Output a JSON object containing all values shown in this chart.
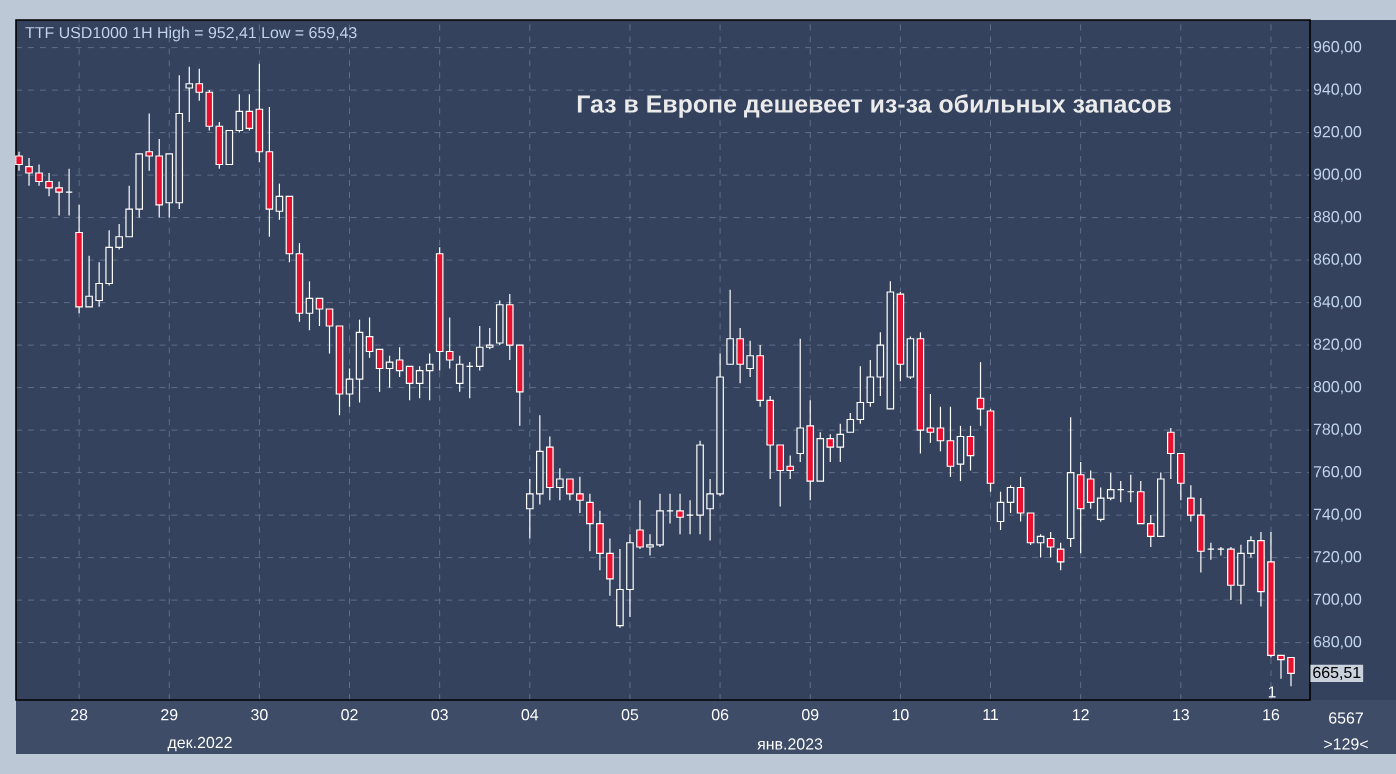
{
  "chart_data": {
    "type": "candlestick",
    "title": "TTF USD1000 1H High = 952,41 Low = 659,43",
    "subtitle": "Газ в Европе дешевеет из-за обильных запасов",
    "categories": [
      null,
      null,
      null,
      null,
      null,
      null,
      "28",
      null,
      null,
      null,
      null,
      null,
      null,
      null,
      null,
      "29",
      null,
      null,
      null,
      null,
      null,
      null,
      null,
      null,
      "30",
      null,
      null,
      null,
      null,
      null,
      null,
      null,
      null,
      "02",
      null,
      null,
      null,
      null,
      null,
      null,
      null,
      null,
      "03",
      null,
      null,
      null,
      null,
      null,
      null,
      null,
      null,
      "04",
      null,
      null,
      null,
      null,
      null,
      null,
      null,
      null,
      null,
      "05",
      null,
      null,
      null,
      null,
      null,
      null,
      null,
      null,
      "06",
      null,
      null,
      null,
      null,
      null,
      null,
      null,
      null,
      "09",
      null,
      null,
      null,
      null,
      null,
      null,
      null,
      null,
      "10",
      null,
      null,
      null,
      null,
      null,
      null,
      null,
      null,
      "11",
      null,
      null,
      null,
      null,
      null,
      null,
      null,
      null,
      "12",
      null,
      null,
      null,
      null,
      null,
      null,
      null,
      null,
      null,
      "13",
      null,
      null,
      null,
      null,
      null,
      null,
      null,
      null,
      "16",
      null,
      null
    ],
    "ohlc": [
      [
        909,
        911,
        902,
        905
      ],
      [
        904,
        908,
        895,
        901
      ],
      [
        901,
        905,
        895,
        897
      ],
      [
        897,
        901,
        890,
        894
      ],
      [
        894,
        897,
        881,
        892
      ],
      [
        892,
        903,
        881,
        892
      ],
      [
        873,
        886,
        835,
        838
      ],
      [
        838,
        862,
        838,
        843
      ],
      [
        841,
        859,
        838,
        849
      ],
      [
        849,
        874,
        848,
        866
      ],
      [
        866,
        877,
        865,
        871
      ],
      [
        871,
        895,
        871,
        884
      ],
      [
        884,
        910,
        880,
        910
      ],
      [
        911,
        929,
        902,
        909
      ],
      [
        909,
        917,
        880,
        886
      ],
      [
        887,
        910,
        880,
        910
      ],
      [
        887,
        947,
        884,
        929
      ],
      [
        941,
        951,
        925,
        943
      ],
      [
        943,
        950,
        935,
        939
      ],
      [
        939,
        940,
        921,
        923
      ],
      [
        923,
        925,
        903,
        905
      ],
      [
        905,
        921,
        905,
        921
      ],
      [
        921,
        938,
        920,
        930
      ],
      [
        930,
        938,
        921,
        922
      ],
      [
        931,
        952.41,
        906,
        911
      ],
      [
        911,
        932,
        871,
        884
      ],
      [
        883,
        896,
        879,
        890
      ],
      [
        890,
        890,
        859,
        863
      ],
      [
        863,
        868,
        831,
        835
      ],
      [
        835,
        850,
        827,
        842
      ],
      [
        842,
        842,
        829,
        837
      ],
      [
        837,
        837,
        816,
        829
      ],
      [
        829,
        829,
        787,
        797
      ],
      [
        797,
        809,
        791,
        804
      ],
      [
        804,
        832,
        793,
        826
      ],
      [
        824,
        833,
        814,
        817
      ],
      [
        818,
        818,
        798,
        809
      ],
      [
        809,
        815,
        800,
        812
      ],
      [
        813,
        819,
        805,
        808
      ],
      [
        810,
        810,
        794,
        802
      ],
      [
        802,
        810,
        795,
        808
      ],
      [
        808,
        816,
        794,
        811
      ],
      [
        863,
        866,
        808,
        817
      ],
      [
        817,
        833,
        809,
        813
      ],
      [
        802,
        815,
        798,
        811
      ],
      [
        810,
        812,
        795,
        810
      ],
      [
        810,
        829,
        808,
        819
      ],
      [
        819,
        828,
        818,
        820
      ],
      [
        821,
        841,
        820,
        839
      ],
      [
        839,
        844,
        813,
        820
      ],
      [
        820,
        820,
        782,
        798
      ],
      [
        743,
        757,
        729,
        750
      ],
      [
        750,
        787,
        745,
        770
      ],
      [
        772,
        777,
        747,
        753
      ],
      [
        753,
        762,
        747,
        757
      ],
      [
        757,
        757,
        747,
        750
      ],
      [
        750,
        758,
        741,
        747
      ],
      [
        746,
        750,
        723,
        736
      ],
      [
        736,
        742,
        714,
        722
      ],
      [
        722,
        729,
        702,
        710
      ],
      [
        688,
        724,
        687,
        705
      ],
      [
        705,
        731,
        692,
        727
      ],
      [
        733,
        747,
        724,
        725
      ],
      [
        725,
        731,
        721,
        726
      ],
      [
        726,
        750,
        725,
        742
      ],
      [
        742,
        750,
        736,
        742
      ],
      [
        742,
        750,
        731,
        739
      ],
      [
        740,
        747,
        731,
        740
      ],
      [
        740,
        775,
        731,
        773
      ],
      [
        743,
        757,
        728,
        750
      ],
      [
        750,
        816,
        749,
        805
      ],
      [
        811,
        846,
        811,
        823
      ],
      [
        823,
        828,
        802,
        811
      ],
      [
        809,
        822,
        805,
        815
      ],
      [
        815,
        820,
        791,
        794
      ],
      [
        794,
        796,
        757,
        773
      ],
      [
        773,
        773,
        744,
        761
      ],
      [
        763,
        768,
        757,
        761
      ],
      [
        769,
        823,
        765,
        781
      ],
      [
        782,
        794,
        747,
        756
      ],
      [
        756,
        779,
        756,
        776
      ],
      [
        776,
        778,
        765,
        772
      ],
      [
        772,
        783,
        765,
        778
      ],
      [
        779,
        788,
        779,
        785
      ],
      [
        785,
        810,
        783,
        793
      ],
      [
        793,
        813,
        791,
        805
      ],
      [
        805,
        826,
        796,
        820
      ],
      [
        790,
        850,
        790,
        845
      ],
      [
        844,
        845,
        803,
        811
      ],
      [
        805,
        824,
        804,
        823
      ],
      [
        823,
        826,
        769,
        780
      ],
      [
        781,
        797,
        774,
        779
      ],
      [
        781,
        791,
        770,
        775
      ],
      [
        775,
        791,
        758,
        763
      ],
      [
        764,
        782,
        756,
        777
      ],
      [
        777,
        782,
        761,
        768
      ],
      [
        795,
        812,
        782,
        790
      ],
      [
        789,
        790,
        751,
        755
      ],
      [
        737,
        751,
        733,
        746
      ],
      [
        746,
        754,
        741,
        753
      ],
      [
        753,
        758,
        737,
        741
      ],
      [
        741,
        741,
        726,
        727
      ],
      [
        727,
        731,
        720,
        730
      ],
      [
        729,
        732,
        720,
        725
      ],
      [
        724,
        727,
        714,
        718
      ],
      [
        729,
        786,
        725,
        760
      ],
      [
        759,
        765,
        722,
        743
      ],
      [
        757,
        761,
        743,
        746
      ],
      [
        738,
        753,
        737,
        748
      ],
      [
        748,
        760,
        747,
        752
      ],
      [
        752,
        756,
        746,
        752
      ],
      [
        751,
        759,
        746,
        751
      ],
      [
        751,
        756,
        736,
        736
      ],
      [
        736,
        740,
        725,
        730
      ],
      [
        730,
        760,
        730,
        757
      ],
      [
        779,
        781,
        757,
        769
      ],
      [
        769,
        769,
        747,
        755
      ],
      [
        748,
        754,
        737,
        740
      ],
      [
        740,
        748,
        713,
        723
      ],
      [
        724,
        727,
        719,
        724
      ],
      [
        724,
        725,
        721,
        724
      ],
      [
        724,
        725,
        700,
        707
      ],
      [
        707,
        726,
        698,
        722
      ],
      [
        722,
        730,
        720,
        728
      ],
      [
        728,
        732,
        697,
        704
      ],
      [
        718,
        732,
        673,
        674
      ],
      [
        674,
        674,
        663,
        672
      ],
      [
        673,
        673,
        659.43,
        665.51
      ]
    ],
    "colors": [
      "#e8102f",
      "#e8102f",
      "#e8102f",
      "#e8102f",
      "#e8102f",
      "#ffffff",
      "#e8102f",
      "#ffffff",
      "#ffffff",
      "#ffffff",
      "#ffffff",
      "#ffffff",
      "#ffffff",
      "#e8102f",
      "#e8102f",
      "#ffffff",
      "#ffffff",
      "#ffffff",
      "#e8102f",
      "#e8102f",
      "#e8102f",
      "#ffffff",
      "#ffffff",
      "#e8102f",
      "#e8102f",
      "#e8102f",
      "#ffffff",
      "#e8102f",
      "#e8102f",
      "#ffffff",
      "#e8102f",
      "#e8102f",
      "#e8102f",
      "#ffffff",
      "#ffffff",
      "#e8102f",
      "#e8102f",
      "#ffffff",
      "#e8102f",
      "#e8102f",
      "#ffffff",
      "#ffffff",
      "#e8102f",
      "#e8102f",
      "#ffffff",
      "#ffffff",
      "#ffffff",
      "#ffffff",
      "#ffffff",
      "#e8102f",
      "#e8102f",
      "#ffffff",
      "#ffffff",
      "#e8102f",
      "#ffffff",
      "#e8102f",
      "#e8102f",
      "#e8102f",
      "#e8102f",
      "#e8102f",
      "#ffffff",
      "#ffffff",
      "#e8102f",
      "#ffffff",
      "#ffffff",
      "#ffffff",
      "#e8102f",
      "#ffffff",
      "#ffffff",
      "#ffffff",
      "#ffffff",
      "#ffffff",
      "#e8102f",
      "#ffffff",
      "#e8102f",
      "#e8102f",
      "#e8102f",
      "#e8102f",
      "#ffffff",
      "#e8102f",
      "#ffffff",
      "#e8102f",
      "#ffffff",
      "#ffffff",
      "#ffffff",
      "#ffffff",
      "#ffffff",
      "#ffffff",
      "#e8102f",
      "#ffffff",
      "#e8102f",
      "#e8102f",
      "#e8102f",
      "#e8102f",
      "#ffffff",
      "#e8102f",
      "#e8102f",
      "#e8102f",
      "#ffffff",
      "#ffffff",
      "#e8102f",
      "#e8102f",
      "#ffffff",
      "#e8102f",
      "#e8102f",
      "#ffffff",
      "#e8102f",
      "#e8102f",
      "#ffffff",
      "#ffffff",
      "#ffffff",
      "#ffffff",
      "#e8102f",
      "#e8102f",
      "#ffffff",
      "#e8102f",
      "#e8102f",
      "#e8102f",
      "#e8102f",
      "#ffffff",
      "#ffffff",
      "#e8102f",
      "#ffffff",
      "#ffffff",
      "#e8102f",
      "#e8102f",
      "#e8102f",
      "#e8102f"
    ],
    "ylim": [
      653,
      973
    ],
    "yticks": [
      {
        "value": 680,
        "label": "680,00"
      },
      {
        "value": 700,
        "label": "700,00"
      },
      {
        "value": 720,
        "label": "720,00"
      },
      {
        "value": 740,
        "label": "740,00"
      },
      {
        "value": 760,
        "label": "760,00"
      },
      {
        "value": 780,
        "label": "780,00"
      },
      {
        "value": 800,
        "label": "800,00"
      },
      {
        "value": 820,
        "label": "820,00"
      },
      {
        "value": 840,
        "label": "840,00"
      },
      {
        "value": 860,
        "label": "860,00"
      },
      {
        "value": 880,
        "label": "880,00"
      },
      {
        "value": 900,
        "label": "900,00"
      },
      {
        "value": 920,
        "label": "920,00"
      },
      {
        "value": 940,
        "label": "940,00"
      },
      {
        "value": 960,
        "label": "960,00"
      }
    ],
    "grid": true,
    "annotations": [
      {
        "text": "665,51",
        "y": 665.51
      },
      "1",
      "6567",
      ">129<",
      "дек.2022",
      "янв.2023"
    ]
  }
}
